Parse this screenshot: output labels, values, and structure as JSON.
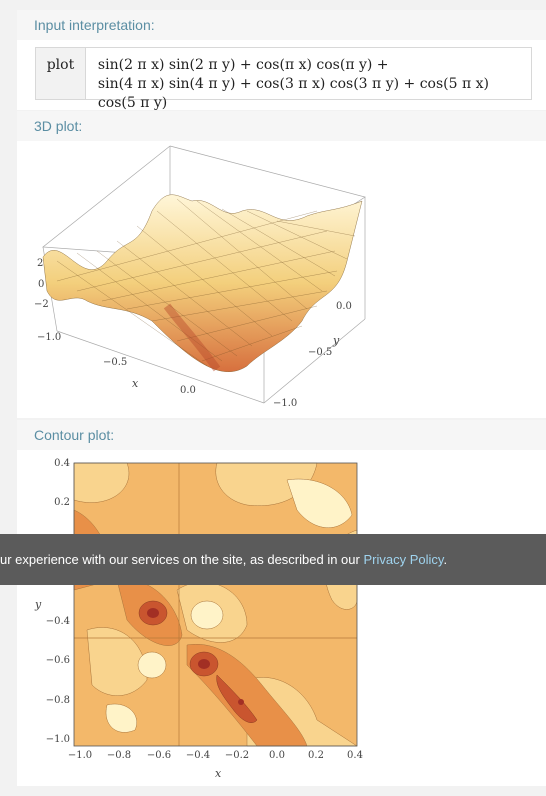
{
  "input_pod": {
    "title": "Input interpretation:",
    "head": "plot",
    "line1": "sin(2 π x) sin(2 π y) + cos(π x) cos(π y) +",
    "line2": "sin(4 π x) sin(4 π y) + cos(3 π x) cos(3 π y) + cos(5 π x) cos(5 π y)"
  },
  "plot3d_pod": {
    "title": "3D plot:",
    "z_ticks": [
      "2",
      "0",
      "−2"
    ],
    "x_ticks": [
      "−1.0",
      "−0.5",
      "0.0"
    ],
    "y_ticks": [
      "0.0",
      "−0.5",
      "−1.0"
    ],
    "x_label": "x",
    "y_label": "y"
  },
  "contour_pod": {
    "title": "Contour plot:",
    "x_label": "x",
    "y_label": "y"
  },
  "banner": {
    "text": "ur experience with our services on the site, as described in our",
    "link": "Privacy Policy",
    "period": "."
  },
  "chart_data": [
    {
      "type": "surface",
      "title": "",
      "xlabel": "x",
      "ylabel": "y",
      "xlim": [
        -1.0,
        0.4
      ],
      "ylim": [
        -1.0,
        0.4
      ],
      "zlim": [
        -3,
        3
      ],
      "z_ticks": [
        2,
        0,
        -2
      ]
    },
    {
      "type": "heatmap",
      "title": "",
      "xlabel": "x",
      "ylabel": "y",
      "xlim": [
        -1.0,
        0.4
      ],
      "ylim": [
        -1.0,
        0.4
      ],
      "x_ticks": [
        "−1.0",
        "−0.8",
        "−0.6",
        "−0.4",
        "−0.2",
        "0.0",
        "0.2",
        "0.4"
      ],
      "y_ticks": [
        "0.4",
        "0.2",
        "−0.4",
        "−0.6",
        "−0.8",
        "−1.0"
      ],
      "color_low": "#c2362a",
      "color_high": "#fffbe8"
    }
  ]
}
